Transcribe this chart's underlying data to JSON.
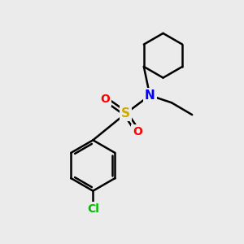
{
  "background_color": "#ebebeb",
  "atom_colors": {
    "N": "#0000ff",
    "S": "#ccaa00",
    "O": "#ff0000",
    "Cl": "#00bb00",
    "C": "#000000"
  },
  "bond_color": "#000000",
  "bond_width": 1.8,
  "figsize": [
    3.0,
    3.0
  ],
  "dpi": 100
}
